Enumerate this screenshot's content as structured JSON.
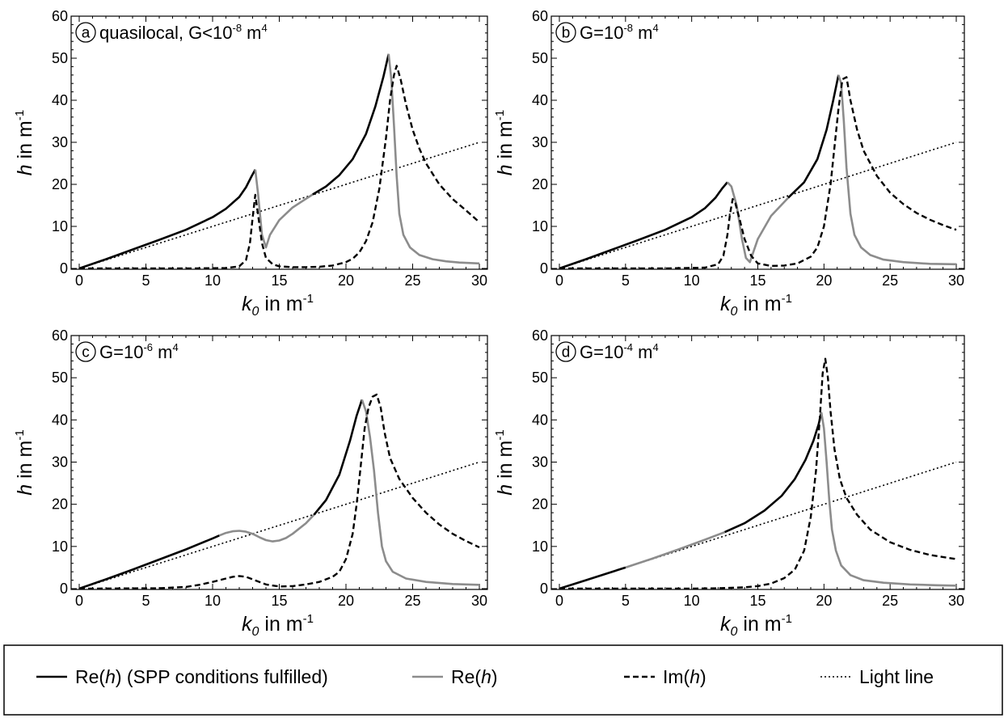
{
  "legend": {
    "items": [
      {
        "key": "re_spp",
        "prefix": "Re(",
        "var": "h",
        "suffix": ") (SPP conditions fulfilled)",
        "color": "#000000",
        "dash": "solid"
      },
      {
        "key": "re",
        "prefix": "Re(",
        "var": "h",
        "suffix": ")",
        "color": "#8c8c8c",
        "dash": "solid"
      },
      {
        "key": "im",
        "prefix": "Im(",
        "var": "h",
        "suffix": ")",
        "color": "#000000",
        "dash": "dashed"
      },
      {
        "key": "light",
        "prefix": "Light line",
        "var": "",
        "suffix": "",
        "color": "#000000",
        "dash": "dotted"
      }
    ]
  },
  "colors": {
    "spp": "#000000",
    "re": "#8c8c8c",
    "im": "#000000",
    "light": "#000000"
  },
  "chart_data": [
    {
      "type": "line",
      "panel": "a",
      "label_text": "quasilocal, G<10",
      "label_exp": "-8",
      "label_unit": " m",
      "label_unit_exp": "4",
      "ylabel_var": "h",
      "ylabel_text": " in m",
      "ylabel_exp": "-1",
      "xlabel_var": "k",
      "xlabel_sub": "0",
      "xlabel_text": " in m",
      "xlabel_exp": "-1",
      "xlim": [
        0,
        30
      ],
      "ylim": [
        0,
        60
      ],
      "xticks": [
        0,
        5,
        10,
        15,
        20,
        25,
        30
      ],
      "yticks": [
        0,
        10,
        20,
        30,
        40,
        50,
        60
      ],
      "series": [
        {
          "style": "spp",
          "x": [
            0,
            2,
            4,
            6,
            8,
            10,
            11,
            12,
            12.5,
            12.9,
            13.2
          ],
          "y": [
            0,
            2.2,
            4.5,
            6.8,
            9.2,
            12.2,
            14.2,
            17,
            19.3,
            21.8,
            23.5
          ]
        },
        {
          "style": "re",
          "x": [
            13.2,
            13.4,
            13.7,
            14,
            14.3,
            15,
            16,
            17.5
          ],
          "y": [
            23.5,
            18,
            8,
            5,
            8,
            11.5,
            14.5,
            17.6
          ]
        },
        {
          "style": "spp",
          "x": [
            17.5,
            18.5,
            19.5,
            20.5,
            21.5,
            22.2,
            22.8,
            23.2
          ],
          "y": [
            17.6,
            19.5,
            22.2,
            26,
            32,
            38.5,
            45.5,
            51
          ]
        },
        {
          "style": "re",
          "x": [
            23.2,
            23.4,
            23.6,
            23.8,
            24,
            24.3,
            24.8,
            25.5,
            26.5,
            27.5,
            28.5,
            30
          ],
          "y": [
            51,
            45,
            34,
            22,
            13,
            8,
            5,
            3.2,
            2.2,
            1.7,
            1.4,
            1.2
          ]
        },
        {
          "style": "im",
          "x": [
            0,
            8,
            11,
            12,
            12.5,
            12.8,
            13,
            13.2,
            13.4,
            13.7,
            14,
            14.5,
            15,
            16,
            17,
            18,
            19,
            20,
            20.5,
            21,
            21.5,
            22,
            22.5,
            23,
            23.3,
            23.6,
            23.8,
            24.1,
            24.5,
            25,
            25.5,
            26,
            27,
            28,
            29,
            30
          ],
          "y": [
            0,
            0,
            0.1,
            0.5,
            2,
            6,
            12,
            17.5,
            13,
            6,
            2.5,
            1,
            0.5,
            0.3,
            0.3,
            0.4,
            0.7,
            1.5,
            2.3,
            3.8,
            6.5,
            11,
            19,
            31,
            40,
            46,
            48.2,
            45,
            39,
            33,
            28.5,
            25,
            20,
            16.5,
            13.8,
            11
          ]
        },
        {
          "style": "light",
          "x": [
            0,
            30
          ],
          "y": [
            0,
            30
          ]
        }
      ]
    },
    {
      "type": "line",
      "panel": "b",
      "label_text": "G=10",
      "label_exp": "-8",
      "label_unit": " m",
      "label_unit_exp": "4",
      "ylabel_var": "h",
      "ylabel_text": " in m",
      "ylabel_exp": "-1",
      "xlabel_var": "k",
      "xlabel_sub": "0",
      "xlabel_text": " in m",
      "xlabel_exp": "-1",
      "xlim": [
        0,
        30
      ],
      "ylim": [
        0,
        60
      ],
      "xticks": [
        0,
        5,
        10,
        15,
        20,
        25,
        30
      ],
      "yticks": [
        0,
        10,
        20,
        30,
        40,
        50,
        60
      ],
      "series": [
        {
          "style": "spp",
          "x": [
            0,
            2,
            4,
            6,
            8,
            10,
            11,
            11.8,
            12.3,
            12.7
          ],
          "y": [
            0,
            2.2,
            4.5,
            6.8,
            9.2,
            12.2,
            14.3,
            16.8,
            19,
            20.5
          ]
        },
        {
          "style": "re",
          "x": [
            12.7,
            13,
            13.4,
            13.8,
            14.1,
            14.4,
            15,
            16,
            17.3
          ],
          "y": [
            20.5,
            19.5,
            15,
            7,
            2.5,
            1.5,
            7,
            12.5,
            16.8
          ]
        },
        {
          "style": "spp",
          "x": [
            17.3,
            18.5,
            19.5,
            20.2,
            20.7,
            21.1
          ],
          "y": [
            16.8,
            20.5,
            26,
            33,
            40,
            46
          ]
        },
        {
          "style": "re",
          "x": [
            21.1,
            21.3,
            21.5,
            21.7,
            22,
            22.3,
            22.8,
            23.5,
            24.5,
            26,
            28,
            30
          ],
          "y": [
            46,
            44,
            35,
            24,
            13,
            8,
            5,
            3.2,
            2.1,
            1.5,
            1.1,
            1
          ]
        },
        {
          "style": "im",
          "x": [
            0,
            8,
            11,
            12,
            12.4,
            12.7,
            12.9,
            13.1,
            13.3,
            13.6,
            14,
            14.5,
            15,
            16,
            17,
            18,
            19,
            19.5,
            20,
            20.5,
            20.8,
            21.1,
            21.4,
            21.7,
            22,
            22.5,
            23,
            24,
            25,
            26,
            27,
            28,
            29,
            30
          ],
          "y": [
            0,
            0,
            0.2,
            1,
            3,
            8,
            13,
            16.5,
            15.5,
            12,
            7,
            3,
            1.2,
            0.6,
            0.7,
            1.2,
            2.8,
            5,
            10,
            20,
            29,
            38,
            45,
            45.5,
            40,
            33,
            28,
            22,
            18,
            15.3,
            13.2,
            11.6,
            10.3,
            9.2
          ]
        },
        {
          "style": "light",
          "x": [
            0,
            30
          ],
          "y": [
            0,
            30
          ]
        }
      ]
    },
    {
      "type": "line",
      "panel": "c",
      "label_text": "G=10",
      "label_exp": "-6",
      "label_unit": " m",
      "label_unit_exp": "4",
      "ylabel_var": "h",
      "ylabel_text": " in m",
      "ylabel_exp": "-1",
      "xlabel_var": "k",
      "xlabel_sub": "0",
      "xlabel_text": " in m",
      "xlabel_exp": "-1",
      "xlim": [
        0,
        30
      ],
      "ylim": [
        0,
        60
      ],
      "xticks": [
        0,
        5,
        10,
        15,
        20,
        25,
        30
      ],
      "yticks": [
        0,
        10,
        20,
        30,
        40,
        50,
        60
      ],
      "series": [
        {
          "style": "spp",
          "x": [
            0,
            2,
            4,
            6,
            8,
            9,
            10,
            10.5
          ],
          "y": [
            0,
            2.2,
            4.5,
            6.9,
            9.3,
            10.6,
            11.9,
            12.6
          ]
        },
        {
          "style": "re",
          "x": [
            10.5,
            11,
            11.5,
            12,
            12.5,
            13,
            13.5,
            14,
            14.5,
            15,
            15.5,
            16,
            17,
            17.6
          ],
          "y": [
            12.6,
            13.2,
            13.6,
            13.7,
            13.5,
            13,
            12.2,
            11.5,
            11.2,
            11.4,
            12,
            13,
            15.5,
            17.5
          ]
        },
        {
          "style": "spp",
          "x": [
            17.6,
            18.5,
            19.5,
            20.3,
            20.8,
            21.2
          ],
          "y": [
            17.5,
            21,
            27,
            35,
            41,
            44.8
          ]
        },
        {
          "style": "re",
          "x": [
            21.2,
            21.5,
            21.8,
            22.1,
            22.4,
            22.7,
            23,
            23.5,
            24.5,
            26,
            28,
            30
          ],
          "y": [
            44.8,
            42,
            36,
            28,
            18,
            10,
            6.5,
            4,
            2.4,
            1.6,
            1.1,
            0.9
          ]
        },
        {
          "style": "im",
          "x": [
            0,
            6,
            8,
            9,
            10,
            11,
            11.5,
            12,
            12.5,
            13,
            14,
            15,
            16,
            17,
            18,
            19,
            19.5,
            20,
            20.5,
            20.8,
            21.1,
            21.4,
            21.7,
            22,
            22.3,
            22.6,
            22.9,
            23.3,
            24,
            25,
            26,
            27,
            28,
            29,
            30
          ],
          "y": [
            0,
            0.1,
            0.4,
            0.9,
            1.6,
            2.4,
            2.8,
            3,
            2.8,
            2.2,
            1,
            0.5,
            0.6,
            1,
            1.6,
            2.8,
            4,
            7,
            13,
            20,
            29,
            38,
            43,
            45.5,
            46,
            43,
            37,
            31,
            26,
            21.5,
            18,
            15.2,
            13,
            11.3,
            9.8
          ]
        },
        {
          "style": "light",
          "x": [
            0,
            30
          ],
          "y": [
            0,
            30
          ]
        }
      ]
    },
    {
      "type": "line",
      "panel": "d",
      "label_text": "G=10",
      "label_exp": "-4",
      "label_unit": " m",
      "label_unit_exp": "4",
      "ylabel_var": "h",
      "ylabel_text": " in m",
      "ylabel_exp": "-1",
      "xlabel_var": "k",
      "xlabel_sub": "0",
      "xlabel_text": " in m",
      "xlabel_exp": "-1",
      "xlim": [
        0,
        30
      ],
      "ylim": [
        0,
        60
      ],
      "xticks": [
        0,
        5,
        10,
        15,
        20,
        25,
        30
      ],
      "yticks": [
        0,
        10,
        20,
        30,
        40,
        50,
        60
      ],
      "series": [
        {
          "style": "spp",
          "x": [
            0,
            2,
            4,
            5
          ],
          "y": [
            0,
            2,
            4,
            5
          ]
        },
        {
          "style": "re",
          "x": [
            5,
            7,
            9,
            11,
            12.5
          ],
          "y": [
            5,
            7.1,
            9.3,
            11.6,
            13.4
          ]
        },
        {
          "style": "spp",
          "x": [
            12.5,
            14,
            15.5,
            16.8,
            17.8,
            18.6,
            19.2,
            19.6,
            19.8
          ],
          "y": [
            13.4,
            15.5,
            18.5,
            22,
            26,
            30.5,
            35,
            39,
            41.8
          ]
        },
        {
          "style": "re",
          "x": [
            19.8,
            20,
            20.2,
            20.4,
            20.6,
            20.9,
            21.3,
            22,
            23,
            24.5,
            26.5,
            28.5,
            30
          ],
          "y": [
            41.8,
            38,
            30,
            21,
            14,
            9,
            5.5,
            3.2,
            2,
            1.4,
            1,
            0.8,
            0.7
          ]
        },
        {
          "style": "im",
          "x": [
            0,
            10,
            12,
            14,
            15,
            16,
            17,
            17.8,
            18.5,
            19,
            19.4,
            19.7,
            19.9,
            20.1,
            20.3,
            20.5,
            20.8,
            21.2,
            21.7,
            22.5,
            23.5,
            25,
            26.5,
            28,
            30
          ],
          "y": [
            0,
            0,
            0.1,
            0.3,
            0.6,
            1.2,
            2.5,
            4.5,
            9,
            17,
            28,
            41,
            51,
            54.5,
            50,
            42,
            33,
            26,
            21.5,
            17.5,
            14,
            11,
            9.2,
            8,
            7
          ]
        },
        {
          "style": "light",
          "x": [
            0,
            30
          ],
          "y": [
            0,
            30
          ]
        }
      ]
    }
  ]
}
